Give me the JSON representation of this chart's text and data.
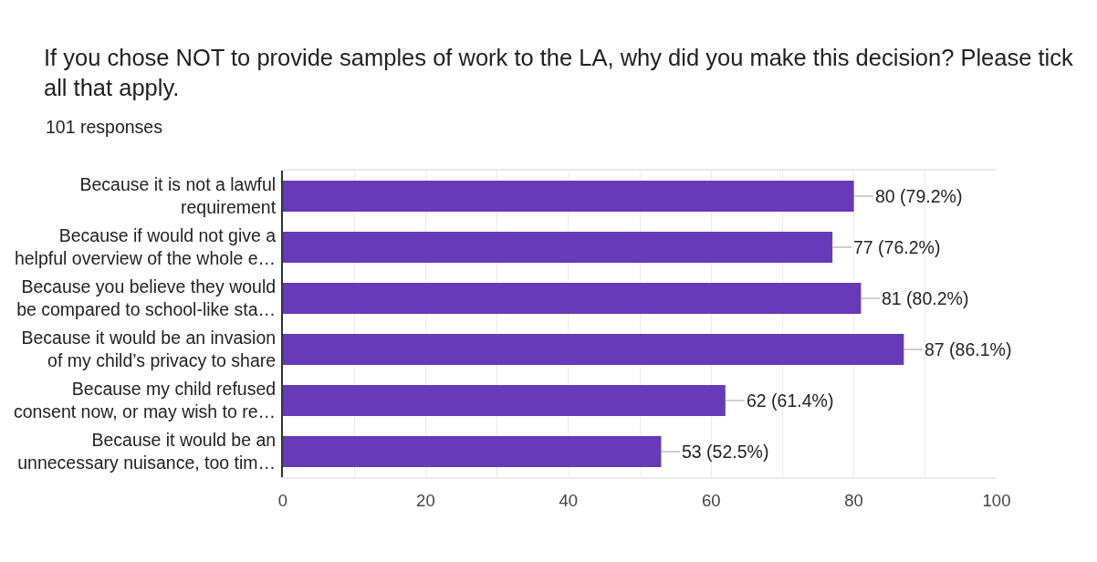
{
  "chart_data": {
    "type": "bar",
    "orientation": "horizontal",
    "title": "If you chose NOT to provide samples of work to the LA, why did you make this decision? Please tick all that apply.",
    "subtitle": "101 responses",
    "categories": [
      "Because it is not a lawful requirement",
      "Because if would not give a helpful overview of the whole e…",
      "Because you believe they would be compared to school-like sta…",
      "Because it would be an invasion of my child’s privacy to share",
      "Because my child refused consent now, or may wish to re…",
      "Because it would be an unnecessary nuisance, too tim…"
    ],
    "values": [
      80,
      77,
      81,
      87,
      62,
      53
    ],
    "color": "#673ab7",
    "value_labels": [
      "80 (79.2%)",
      "77 (76.2%)",
      "81 (80.2%)",
      "87 (86.1%)",
      "62 (61.4%)",
      "53 (52.5%)"
    ],
    "xlim": [
      0,
      100
    ],
    "xticks": [
      0,
      {
        "value": 10,
        "label": null
      },
      20,
      {
        "value": 30,
        "label": null
      },
      40,
      {
        "value": 50,
        "label": null
      },
      60,
      {
        "value": 70,
        "label": null
      },
      80,
      {
        "value": 90,
        "label": null
      },
      100
    ],
    "grid": "x"
  }
}
